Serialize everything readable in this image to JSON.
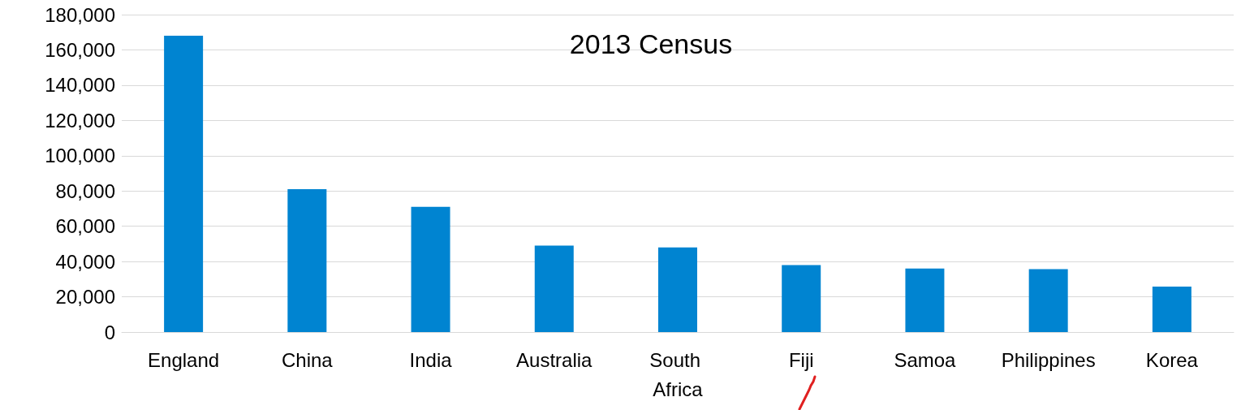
{
  "chart_data": {
    "type": "bar",
    "title": "2013 Census",
    "categories": [
      "England",
      "China",
      "India",
      "Australia",
      "South Africa",
      "Fiji",
      "Samoa",
      "Philippines",
      "Korea"
    ],
    "values": [
      168000,
      81000,
      71000,
      49000,
      48000,
      38000,
      36000,
      35700,
      25800
    ],
    "color": "#0084d1",
    "ylim": [
      0,
      180000
    ],
    "yticks": [
      0,
      {
        "value": 20000,
        "label": "20,000"
      },
      {
        "value": 40000,
        "label": "40,000"
      },
      {
        "value": 60000,
        "label": "60,000"
      },
      {
        "value": 80000,
        "label": "80,000"
      },
      {
        "value": 100000,
        "label": "100,000"
      },
      {
        "value": 120000,
        "label": "120,000"
      },
      {
        "value": 140000,
        "label": "140,000"
      },
      {
        "value": 160000,
        "label": "160,000"
      },
      {
        "value": 180000,
        "label": "180,000"
      }
    ],
    "grid": "y"
  }
}
